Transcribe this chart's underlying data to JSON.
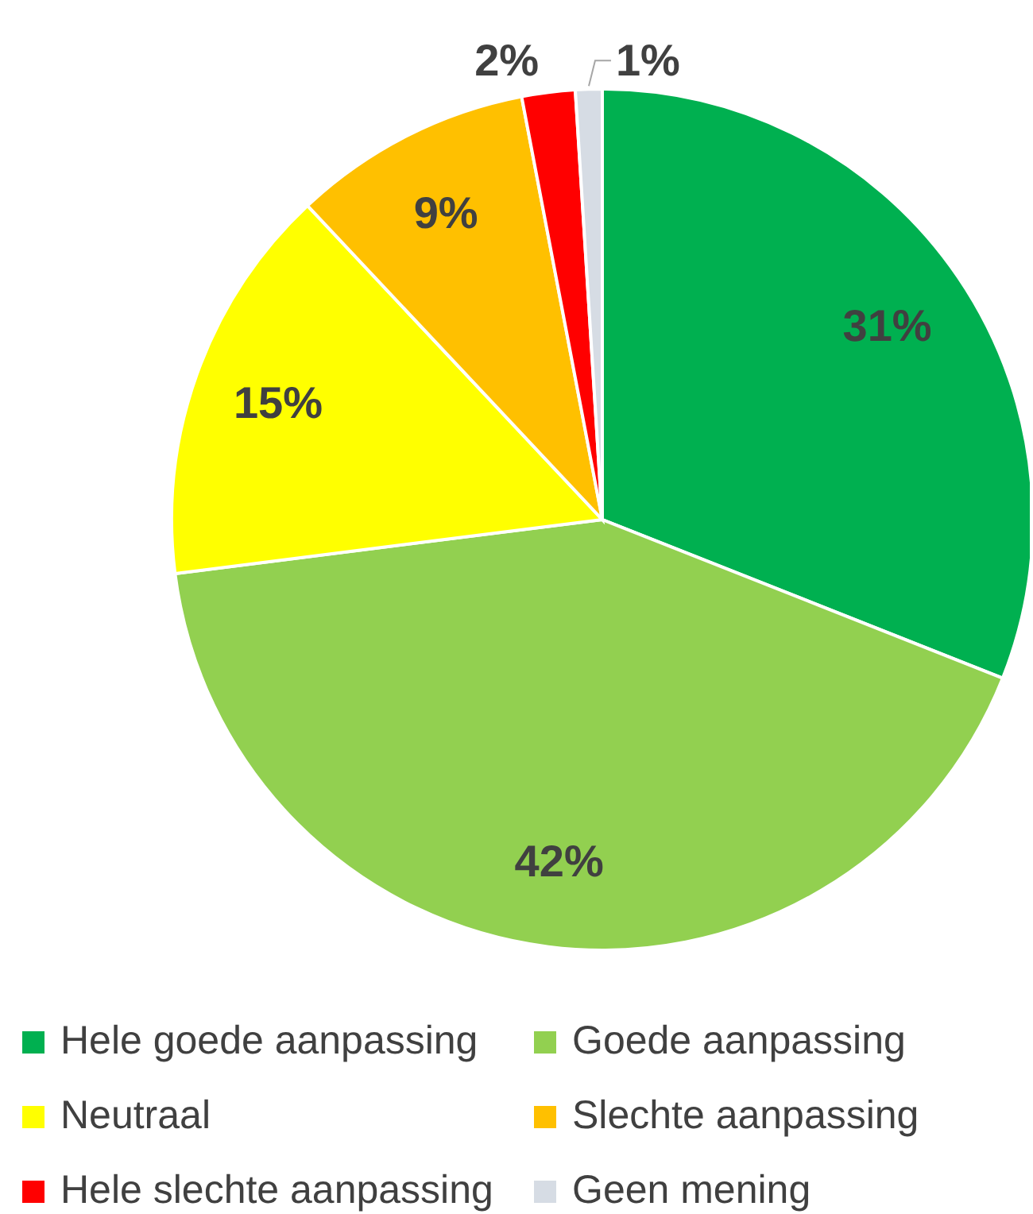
{
  "chart_data": {
    "type": "pie",
    "categories": [
      "Hele goede aanpassing",
      "Goede aanpassing",
      "Neutraal",
      "Slechte aanpassing",
      "Hele slechte aanpassing",
      "Geen mening"
    ],
    "values": [
      31,
      42,
      15,
      9,
      2,
      1
    ],
    "colors": [
      "#00b050",
      "#92d050",
      "#ffff00",
      "#ffc000",
      "#ff0000",
      "#d6dce4"
    ],
    "value_labels": [
      "31%",
      "42%",
      "15%",
      "9%",
      "2%",
      "1%"
    ],
    "legend": "bottom"
  }
}
